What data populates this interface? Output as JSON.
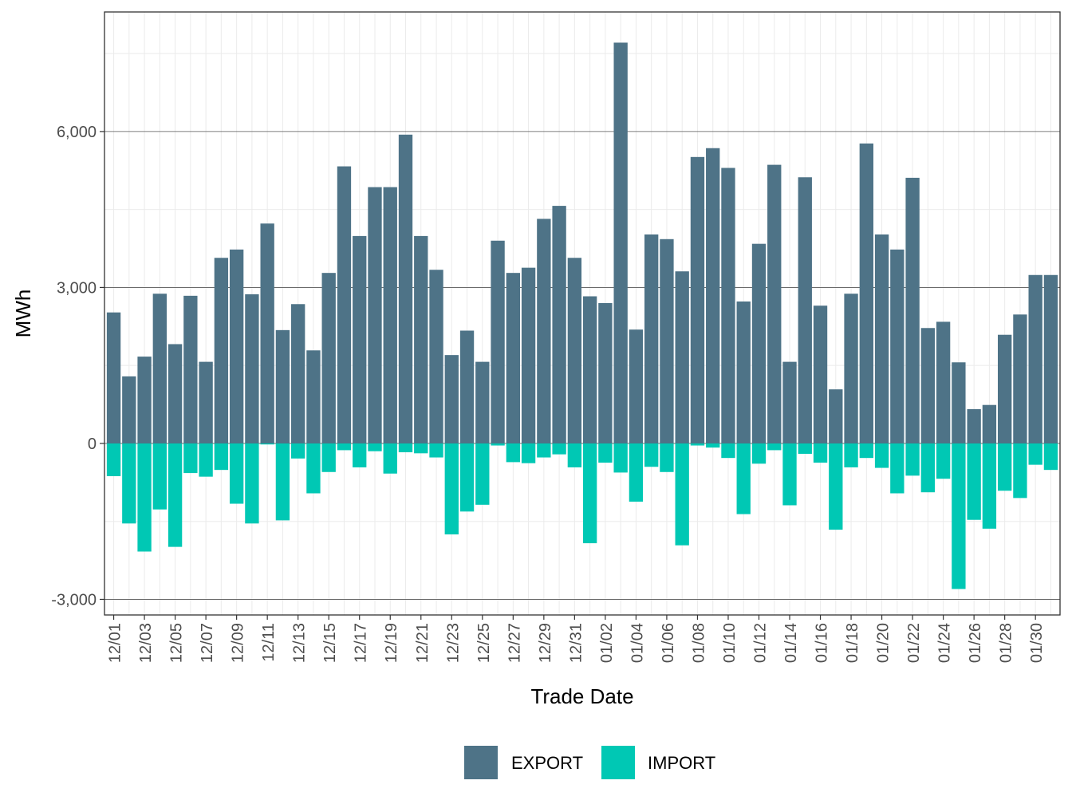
{
  "chart_data": {
    "type": "bar",
    "stacked": true,
    "xlabel": "Trade Date",
    "ylabel": "MWh",
    "ylim": [
      -3300,
      8300
    ],
    "yticks": [
      -3000,
      0,
      3000,
      6000
    ],
    "ytick_labels": [
      "-3,000",
      "0",
      "3,000",
      "6,000"
    ],
    "grid": true,
    "legend_position": "bottom",
    "categories": [
      "12/01",
      "12/02",
      "12/03",
      "12/04",
      "12/05",
      "12/06",
      "12/07",
      "12/08",
      "12/09",
      "12/10",
      "12/11",
      "12/12",
      "12/13",
      "12/14",
      "12/15",
      "12/16",
      "12/17",
      "12/18",
      "12/19",
      "12/20",
      "12/21",
      "12/22",
      "12/23",
      "12/24",
      "12/25",
      "12/26",
      "12/27",
      "12/28",
      "12/29",
      "12/30",
      "12/31",
      "01/01",
      "01/02",
      "01/03",
      "01/04",
      "01/05",
      "01/06",
      "01/07",
      "01/08",
      "01/09",
      "01/10",
      "01/11",
      "01/12",
      "01/13",
      "01/14",
      "01/15",
      "01/16",
      "01/17",
      "01/18",
      "01/19",
      "01/20",
      "01/21",
      "01/22",
      "01/23",
      "01/24",
      "01/25",
      "01/26",
      "01/27",
      "01/28",
      "01/29",
      "01/30",
      "01/31"
    ],
    "tick_labels": [
      "12/01",
      "12/03",
      "12/05",
      "12/07",
      "12/09",
      "12/11",
      "12/13",
      "12/15",
      "12/17",
      "12/19",
      "12/21",
      "12/23",
      "12/25",
      "12/27",
      "12/29",
      "12/31",
      "01/02",
      "01/04",
      "01/06",
      "01/08",
      "01/10",
      "01/12",
      "01/14",
      "01/16",
      "01/18",
      "01/20",
      "01/22",
      "01/24",
      "01/26",
      "01/28",
      "01/30"
    ],
    "series": [
      {
        "name": "EXPORT",
        "color": "#4e7387",
        "values": [
          2520,
          1290,
          1670,
          2880,
          1910,
          2840,
          1570,
          3570,
          3730,
          2870,
          4230,
          2180,
          2680,
          1790,
          3280,
          5330,
          3990,
          4930,
          4930,
          5940,
          3990,
          3340,
          1700,
          2170,
          1570,
          3900,
          3280,
          3380,
          4320,
          4570,
          3570,
          2830,
          2700,
          7710,
          2190,
          4020,
          3930,
          3310,
          5510,
          5680,
          5300,
          2730,
          3840,
          5360,
          1570,
          5120,
          2650,
          1040,
          2880,
          5770,
          4020,
          3730,
          5110,
          2220,
          2340,
          1560,
          660,
          740,
          2090,
          2480,
          3240,
          3240
        ]
      },
      {
        "name": "IMPORT",
        "color": "#00c8b4",
        "values": [
          -630,
          -1540,
          -2080,
          -1270,
          -1990,
          -570,
          -640,
          -510,
          -1160,
          -1540,
          -20,
          -1480,
          -290,
          -960,
          -550,
          -130,
          -460,
          -150,
          -580,
          -170,
          -190,
          -270,
          -1750,
          -1310,
          -1180,
          -40,
          -360,
          -380,
          -270,
          -210,
          -460,
          -1920,
          -370,
          -560,
          -1120,
          -450,
          -550,
          -1960,
          -40,
          -80,
          -280,
          -1360,
          -390,
          -130,
          -1190,
          -200,
          -370,
          -1660,
          -460,
          -280,
          -470,
          -960,
          -620,
          -940,
          -680,
          -2800,
          -1470,
          -1640,
          -910,
          -1050,
          -410,
          -510
        ]
      }
    ]
  }
}
